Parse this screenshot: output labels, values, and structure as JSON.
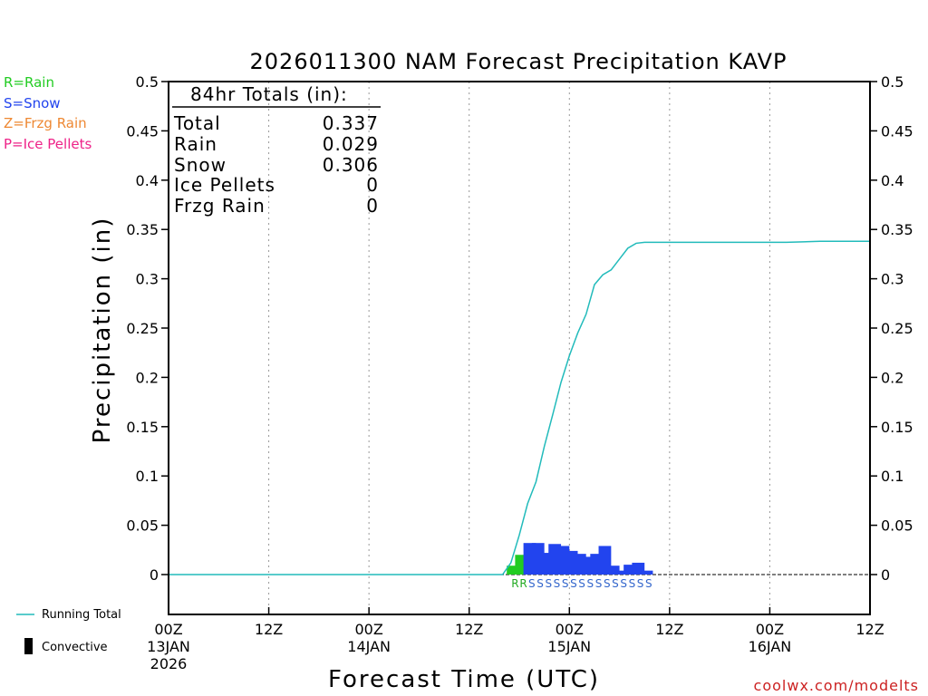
{
  "title": "2026011300 NAM Forecast Precipitation KAVP",
  "legend_types": [
    {
      "label": "R=Rain",
      "color": "#22cc22"
    },
    {
      "label": "S=Snow",
      "color": "#2244ee"
    },
    {
      "label": "Z=Frzg Rain",
      "color": "#ee8833"
    },
    {
      "label": "P=Ice Pellets",
      "color": "#ee2288"
    }
  ],
  "totals": {
    "heading": "84hr Totals (in):",
    "rows": [
      {
        "label": "Total",
        "value": "0.337"
      },
      {
        "label": "Rain",
        "value": "0.029"
      },
      {
        "label": "Snow",
        "value": "0.306"
      },
      {
        "label": "Ice Pellets",
        "value": "0"
      },
      {
        "label": "Frzg Rain",
        "value": "0"
      }
    ]
  },
  "bottom_legend": {
    "running_total": "Running Total",
    "convective": "Convective"
  },
  "credit": "coolwx.com/modelts",
  "chart_data": {
    "type": "bar",
    "title": "2026011300 NAM Forecast Precipitation KAVP",
    "xlabel": "Forecast Time (UTC)",
    "ylabel": "Precipitation (in)",
    "xlim": [
      0,
      84
    ],
    "ylim": [
      -0.04,
      0.5
    ],
    "y_ticks": [
      {
        "value": 0,
        "label": "0"
      },
      {
        "value": 0.05,
        "label": "0.05"
      },
      {
        "value": 0.1,
        "label": "0.1"
      },
      {
        "value": 0.15,
        "label": "0.15"
      },
      {
        "value": 0.2,
        "label": "0.2"
      },
      {
        "value": 0.25,
        "label": "0.25"
      },
      {
        "value": 0.3,
        "label": "0.3"
      },
      {
        "value": 0.35,
        "label": "0.35"
      },
      {
        "value": 0.4,
        "label": "0.4"
      },
      {
        "value": 0.45,
        "label": "0.45"
      },
      {
        "value": 0.5,
        "label": "0.5"
      }
    ],
    "x_ticks": [
      {
        "hour": 0,
        "label": "00Z",
        "date": "13JAN",
        "year": "2026"
      },
      {
        "hour": 12,
        "label": "12Z",
        "date": "",
        "year": ""
      },
      {
        "hour": 24,
        "label": "00Z",
        "date": "14JAN",
        "year": ""
      },
      {
        "hour": 36,
        "label": "12Z",
        "date": "",
        "year": ""
      },
      {
        "hour": 48,
        "label": "00Z",
        "date": "15JAN",
        "year": ""
      },
      {
        "hour": 60,
        "label": "12Z",
        "date": "",
        "year": ""
      },
      {
        "hour": 72,
        "label": "00Z",
        "date": "16JAN",
        "year": ""
      },
      {
        "hour": 84,
        "label": "12Z",
        "date": "",
        "year": ""
      }
    ],
    "grid_x": true,
    "bar_width_hours": 1,
    "bars": [
      {
        "hour": 41,
        "value": 0.009,
        "type": "R"
      },
      {
        "hour": 42,
        "value": 0.02,
        "type": "R"
      },
      {
        "hour": 43,
        "value": 0.032,
        "type": "S"
      },
      {
        "hour": 44,
        "value": 0.032,
        "type": "S"
      },
      {
        "hour": 45,
        "value": 0.022,
        "type": "S"
      },
      {
        "hour": 46,
        "value": 0.031,
        "type": "S"
      },
      {
        "hour": 47,
        "value": 0.029,
        "type": "S"
      },
      {
        "hour": 48,
        "value": 0.024,
        "type": "S"
      },
      {
        "hour": 49,
        "value": 0.021,
        "type": "S"
      },
      {
        "hour": 50,
        "value": 0.018,
        "type": "S"
      },
      {
        "hour": 51,
        "value": 0.021,
        "type": "S"
      },
      {
        "hour": 52,
        "value": 0.029,
        "type": "S"
      },
      {
        "hour": 53,
        "value": 0.009,
        "type": "S"
      },
      {
        "hour": 54,
        "value": 0.004,
        "type": "S"
      },
      {
        "hour": 55,
        "value": 0.01,
        "type": "S"
      },
      {
        "hour": 56,
        "value": 0.012,
        "type": "S"
      },
      {
        "hour": 57,
        "value": 0.004,
        "type": "S"
      }
    ],
    "running_total": {
      "color": "#22bbbb",
      "points": [
        [
          0,
          0
        ],
        [
          40,
          0
        ],
        [
          41,
          0.012
        ],
        [
          42,
          0.04
        ],
        [
          43,
          0.072
        ],
        [
          44,
          0.094
        ],
        [
          45,
          0.13
        ],
        [
          46,
          0.162
        ],
        [
          47,
          0.195
        ],
        [
          48,
          0.222
        ],
        [
          49,
          0.245
        ],
        [
          50,
          0.264
        ],
        [
          51,
          0.294
        ],
        [
          52,
          0.304
        ],
        [
          53,
          0.309
        ],
        [
          54,
          0.32
        ],
        [
          55,
          0.331
        ],
        [
          56,
          0.336
        ],
        [
          57,
          0.337
        ],
        [
          74,
          0.337
        ],
        [
          78,
          0.338
        ],
        [
          84,
          0.338
        ]
      ]
    },
    "type_colors": {
      "R": "#22cc22",
      "S": "#2244ee",
      "Z": "#ee8833",
      "P": "#ee2288"
    },
    "label_colors": {
      "R": "#22aa22",
      "S": "#3366cc",
      "Z": "#ee8833",
      "P": "#ee2288"
    }
  }
}
